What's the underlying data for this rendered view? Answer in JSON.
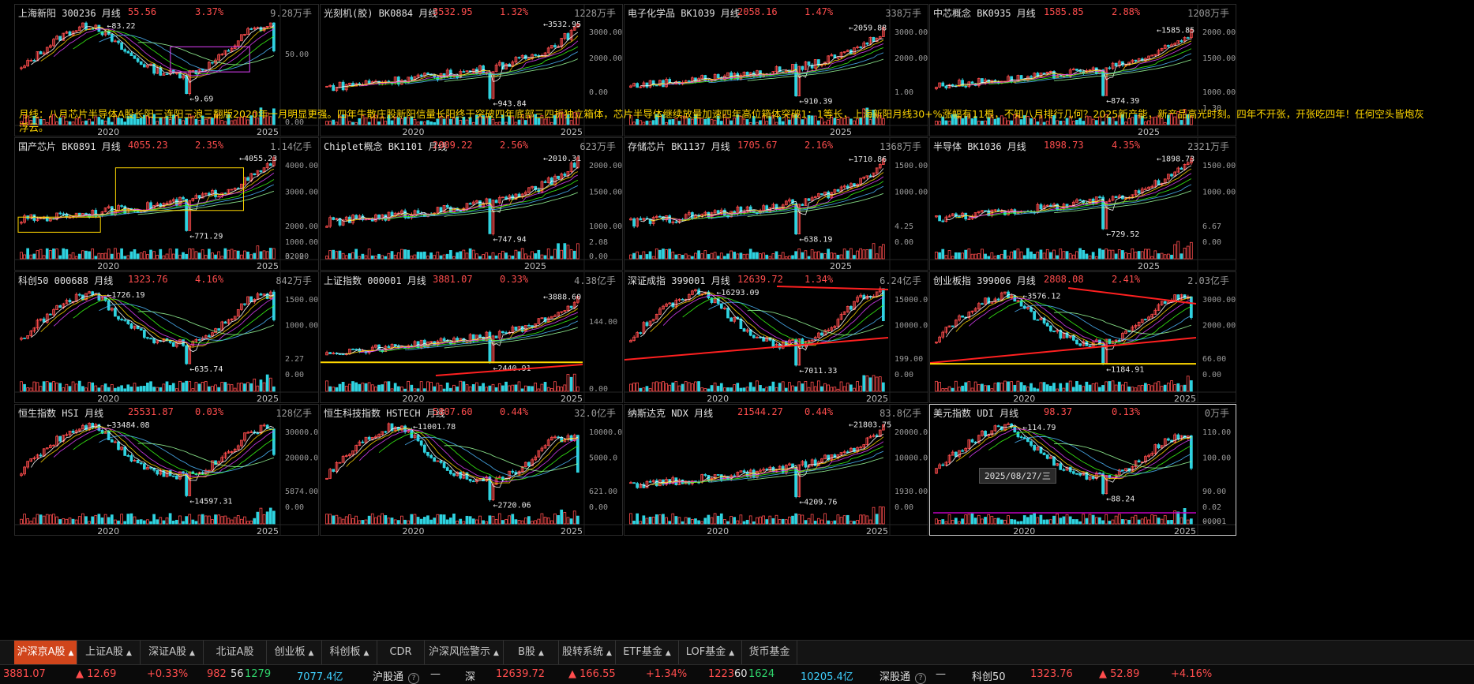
{
  "colors": {
    "up": "#ff4d4d",
    "down": "#2fd3e0",
    "accent": "#d0451b",
    "annotation": "#ffd700",
    "box_yellow": "#ffd700",
    "box_magenta": "#e040fb",
    "trend_red": "#ff2020"
  },
  "annotation": "月线：八月芯片半导体A股长阳三连阳三浪三翻版2020年一月明显更强。四年牛散庄股新阳信量长阳终于突破四年底部三四折独立箱体，芯片半导体继续放量加速四年高位箱体突破1：1等长，上海新阳月线30+%涨幅有11根，不知八月排行几何？2025新产能，新产品高光时刻。四年不开张，开张吃四年！任何空头皆炮灰浮云。",
  "hover_date": "2025/08/27/三",
  "panels": [
    {
      "id": "p1",
      "name": "上海新阳 300236 月线",
      "price": "55.56",
      "change": "3.37%",
      "volume": "9.28万手",
      "hi_label": "83.22",
      "lo_label": "9.69",
      "yticks": [
        "50.00",
        "0.00"
      ],
      "xlabels": [
        "2020",
        "2025"
      ],
      "vol_tick": "",
      "chart_data": {
        "type": "candlestick-monthly",
        "series_hint": "rise-to-2021-peak-then-box",
        "high": 83.22,
        "low": 9.69,
        "last": 55.56,
        "ylim": [
          0,
          90
        ]
      }
    },
    {
      "id": "p2",
      "name": "光刻机(胶) BK0884 月线",
      "price": "3532.95",
      "change": "1.32%",
      "volume": "1228万手",
      "hi_label": "3532.95",
      "lo_label": "943.84",
      "yticks": [
        "3000.00",
        "2000.00",
        "0.00"
      ],
      "xlabels": [
        "2020",
        "2025"
      ],
      "vol_tick": "",
      "chart_data": {
        "type": "candlestick-monthly",
        "high": 3532.95,
        "low": 943.84,
        "last": 3532.95,
        "ylim": [
          800,
          3700
        ]
      }
    },
    {
      "id": "p3",
      "name": "电子化学品 BK1039 月线",
      "price": "2058.16",
      "change": "1.47%",
      "volume": "338万手",
      "hi_label": "2059.88",
      "lo_label": "910.39",
      "yticks": [
        "3000.00",
        "2000.00",
        "1.00"
      ],
      "xlabels": [
        "2025"
      ],
      "vol_tick": "",
      "chart_data": {
        "type": "candlestick-monthly",
        "high": 2059.88,
        "low": 910.39,
        "last": 2058.16,
        "ylim": [
          800,
          2200
        ]
      }
    },
    {
      "id": "p4",
      "name": "中芯概念 BK0935 月线",
      "price": "1585.85",
      "change": "2.88%",
      "volume": "1208万手",
      "hi_label": "1585.85",
      "lo_label": "874.39",
      "yticks": [
        "2000.00",
        "1500.00",
        "1000.00",
        "1.30"
      ],
      "xlabels": [
        "2025"
      ],
      "vol_tick": "",
      "chart_data": {
        "type": "candlestick-monthly",
        "high": 1585.85,
        "low": 874.39,
        "last": 1585.85,
        "ylim": [
          800,
          1700
        ]
      }
    },
    {
      "id": "p5",
      "name": "国产芯片 BK0891 月线",
      "price": "4055.23",
      "change": "2.35%",
      "volume": "1.14亿手",
      "hi_label": "4055.23",
      "lo_label": "771.29",
      "yticks": [
        "4000.00",
        "3000.00",
        "2000.00",
        "1000.00",
        "32.20",
        "0.00"
      ],
      "xlabels": [
        "2020",
        "2025"
      ],
      "vol_tick": "32.20",
      "chart_data": {
        "type": "candlestick-monthly",
        "high": 4055.23,
        "low": 771.29,
        "last": 4055.23,
        "ylim": [
          500,
          4300
        ]
      }
    },
    {
      "id": "p6",
      "name": "Chiplet概念 BK1101 月线",
      "price": "2009.22",
      "change": "2.56%",
      "volume": "623万手",
      "hi_label": "2010.31",
      "lo_label": "747.94",
      "yticks": [
        "2000.00",
        "1500.00",
        "1000.00",
        "2.08",
        "0.00"
      ],
      "xlabels": [
        "2025"
      ],
      "vol_tick": "2.08",
      "chart_data": {
        "type": "candlestick-monthly",
        "high": 2010.31,
        "low": 747.94,
        "last": 2009.22,
        "ylim": [
          700,
          2100
        ]
      }
    },
    {
      "id": "p7",
      "name": "存储芯片 BK1137 月线",
      "price": "1705.67",
      "change": "2.16%",
      "volume": "1368万手",
      "hi_label": "1710.86",
      "lo_label": "638.19",
      "yticks": [
        "1500.00",
        "1000.00",
        "4.25",
        "0.00"
      ],
      "xlabels": [
        "2025"
      ],
      "vol_tick": "4.25",
      "chart_data": {
        "type": "candlestick-monthly",
        "high": 1710.86,
        "low": 638.19,
        "last": 1705.67,
        "ylim": [
          600,
          1800
        ]
      }
    },
    {
      "id": "p8",
      "name": "半导体 BK1036 月线",
      "price": "1898.73",
      "change": "4.35%",
      "volume": "2321万手",
      "hi_label": "1898.73",
      "lo_label": "729.52",
      "yticks": [
        "1500.00",
        "1000.00",
        "6.67",
        "0.00"
      ],
      "xlabels": [
        "2025"
      ],
      "vol_tick": "6.67",
      "chart_data": {
        "type": "candlestick-monthly",
        "high": 1898.73,
        "low": 729.52,
        "last": 1898.73,
        "ylim": [
          600,
          2000
        ]
      }
    },
    {
      "id": "p9",
      "name": "科创50 000688 月线",
      "price": "1323.76",
      "change": "4.16%",
      "volume": "842万手",
      "hi_label": "1726.19",
      "lo_label": "635.74",
      "yticks": [
        "1500.00",
        "1000.00",
        "2.27",
        "0.00"
      ],
      "xlabels": [
        "2020",
        "2025"
      ],
      "vol_tick": "2.27",
      "chart_data": {
        "type": "candlestick-monthly",
        "high": 1726.19,
        "low": 635.74,
        "last": 1323.76,
        "ylim": [
          550,
          1850
        ]
      }
    },
    {
      "id": "p10",
      "name": "上证指数 000001 月线",
      "price": "3881.07",
      "change": "0.33%",
      "volume": "4.38亿手",
      "hi_label": "3888.60",
      "lo_label": "2440.91",
      "yticks": [
        "144.00",
        "0.00"
      ],
      "xlabels": [
        "2020",
        "2025"
      ],
      "vol_tick": "144.00",
      "chart_data": {
        "type": "candlestick-monthly",
        "high": 3888.6,
        "low": 2440.91,
        "last": 3881.07,
        "ylim": [
          2300,
          4100
        ]
      }
    },
    {
      "id": "p11",
      "name": "深证成指 399001 月线",
      "price": "12639.72",
      "change": "1.34%",
      "volume": "6.24亿手",
      "hi_label": "16293.09",
      "lo_label": "7011.33",
      "yticks": [
        "15000.0",
        "10000.0",
        "199.00",
        "0.00"
      ],
      "xlabels": [
        "2020",
        "2025"
      ],
      "vol_tick": "199.00",
      "chart_data": {
        "type": "candlestick-monthly",
        "high": 16293.09,
        "low": 7011.33,
        "last": 12639.72,
        "ylim": [
          6500,
          17000
        ]
      }
    },
    {
      "id": "p12",
      "name": "创业板指 399006 月线",
      "price": "2808.08",
      "change": "2.41%",
      "volume": "2.03亿手",
      "hi_label": "3576.12",
      "lo_label": "1184.91",
      "yticks": [
        "3000.00",
        "2000.00",
        "66.00",
        "0.00"
      ],
      "xlabels": [
        "2020",
        "2025"
      ],
      "vol_tick": "66.00",
      "chart_data": {
        "type": "candlestick-monthly",
        "high": 3576.12,
        "low": 1184.91,
        "last": 2808.08,
        "ylim": [
          1000,
          3900
        ]
      }
    },
    {
      "id": "p13",
      "name": "恒生指数 HSI 月线",
      "price": "25531.87",
      "change": "0.03%",
      "volume": "128亿手",
      "hi_label": "33484.08",
      "lo_label": "14597.31",
      "yticks": [
        "30000.0",
        "20000.0",
        "5874.00",
        "0.00"
      ],
      "xlabels": [
        "2020",
        "2025"
      ],
      "vol_tick": "5874.00",
      "chart_data": {
        "type": "candlestick-monthly",
        "high": 33484.08,
        "low": 14597.31,
        "last": 25531.87,
        "ylim": [
          13000,
          35000
        ]
      }
    },
    {
      "id": "p14",
      "name": "恒生科技指数 HSTECH 月线",
      "price": "5807.60",
      "change": "0.44%",
      "volume": "32.0亿手",
      "hi_label": "11001.78",
      "lo_label": "2720.06",
      "yticks": [
        "10000.0",
        "5000.0",
        "621.00",
        "0.00"
      ],
      "xlabels": [
        "2020",
        "2025"
      ],
      "vol_tick": "621.00",
      "chart_data": {
        "type": "candlestick-monthly",
        "high": 11001.78,
        "low": 2720.06,
        "last": 5807.6,
        "ylim": [
          2500,
          11800
        ]
      }
    },
    {
      "id": "p15",
      "name": "纳斯达克 NDX 月线",
      "price": "21544.27",
      "change": "0.44%",
      "volume": "83.8亿手",
      "hi_label": "21803.75",
      "lo_label": "4209.76",
      "yticks": [
        "20000.0",
        "10000.0",
        "1930.00",
        "0.00"
      ],
      "xlabels": [
        "2020",
        "2025"
      ],
      "vol_tick": "1930.00",
      "chart_data": {
        "type": "candlestick-monthly",
        "high": 21803.75,
        "low": 4209.76,
        "last": 21544.27,
        "ylim": [
          3000,
          23000
        ]
      }
    },
    {
      "id": "p16",
      "name": "美元指数 UDI 月线",
      "price": "98.37",
      "change": "0.13%",
      "volume": "0万手",
      "hi_label": "114.79",
      "lo_label": "88.24",
      "yticks": [
        "110.00",
        "100.00",
        "90.00",
        "0.02",
        "0.00",
        "-0.01"
      ],
      "xlabels": [
        "2020",
        "2025"
      ],
      "vol_tick": "0.02",
      "chart_data": {
        "type": "candlestick-monthly",
        "high": 114.79,
        "low": 88.24,
        "last": 98.37,
        "ylim": [
          85,
          118
        ]
      }
    }
  ],
  "tabs": [
    {
      "label": "沪深京A股",
      "arrow": "▲",
      "active": true
    },
    {
      "label": "上证A股",
      "arrow": "▲"
    },
    {
      "label": "深证A股",
      "arrow": "▲"
    },
    {
      "label": "北证A股",
      "arrow": ""
    },
    {
      "label": "创业板",
      "arrow": "▲"
    },
    {
      "label": "科创板",
      "arrow": "▲"
    },
    {
      "label": "CDR",
      "arrow": ""
    },
    {
      "label": "沪深风险警示",
      "arrow": "▲"
    },
    {
      "label": "B股",
      "arrow": "▲"
    },
    {
      "label": "股转系统",
      "arrow": "▲"
    },
    {
      "label": "ETF基金",
      "arrow": "▲"
    },
    {
      "label": "LOF基金",
      "arrow": "▲"
    },
    {
      "label": "货币基金",
      "arrow": ""
    }
  ],
  "status": {
    "sh_index": "3881.07",
    "sh_delta": "▲ 12.69",
    "sh_pct": "+0.33%",
    "sh_up": "982",
    "sh_flat": "56",
    "sh_down": "1279",
    "sh_amount": "7077.4亿",
    "hgt_label": "沪股通",
    "hgt_val": "—",
    "sz_label": "深",
    "sz_index": "12639.72",
    "sz_delta": "▲ 166.55",
    "sz_pct": "+1.34%",
    "sz_up": "1223",
    "sz_flat": "60",
    "sz_down": "1624",
    "sz_amount": "10205.4亿",
    "sgt_label": "深股通",
    "sgt_val": "—",
    "kc_label": "科创50",
    "kc_index": "1323.76",
    "kc_delta": "▲ 52.89",
    "kc_pct": "+4.16%"
  }
}
